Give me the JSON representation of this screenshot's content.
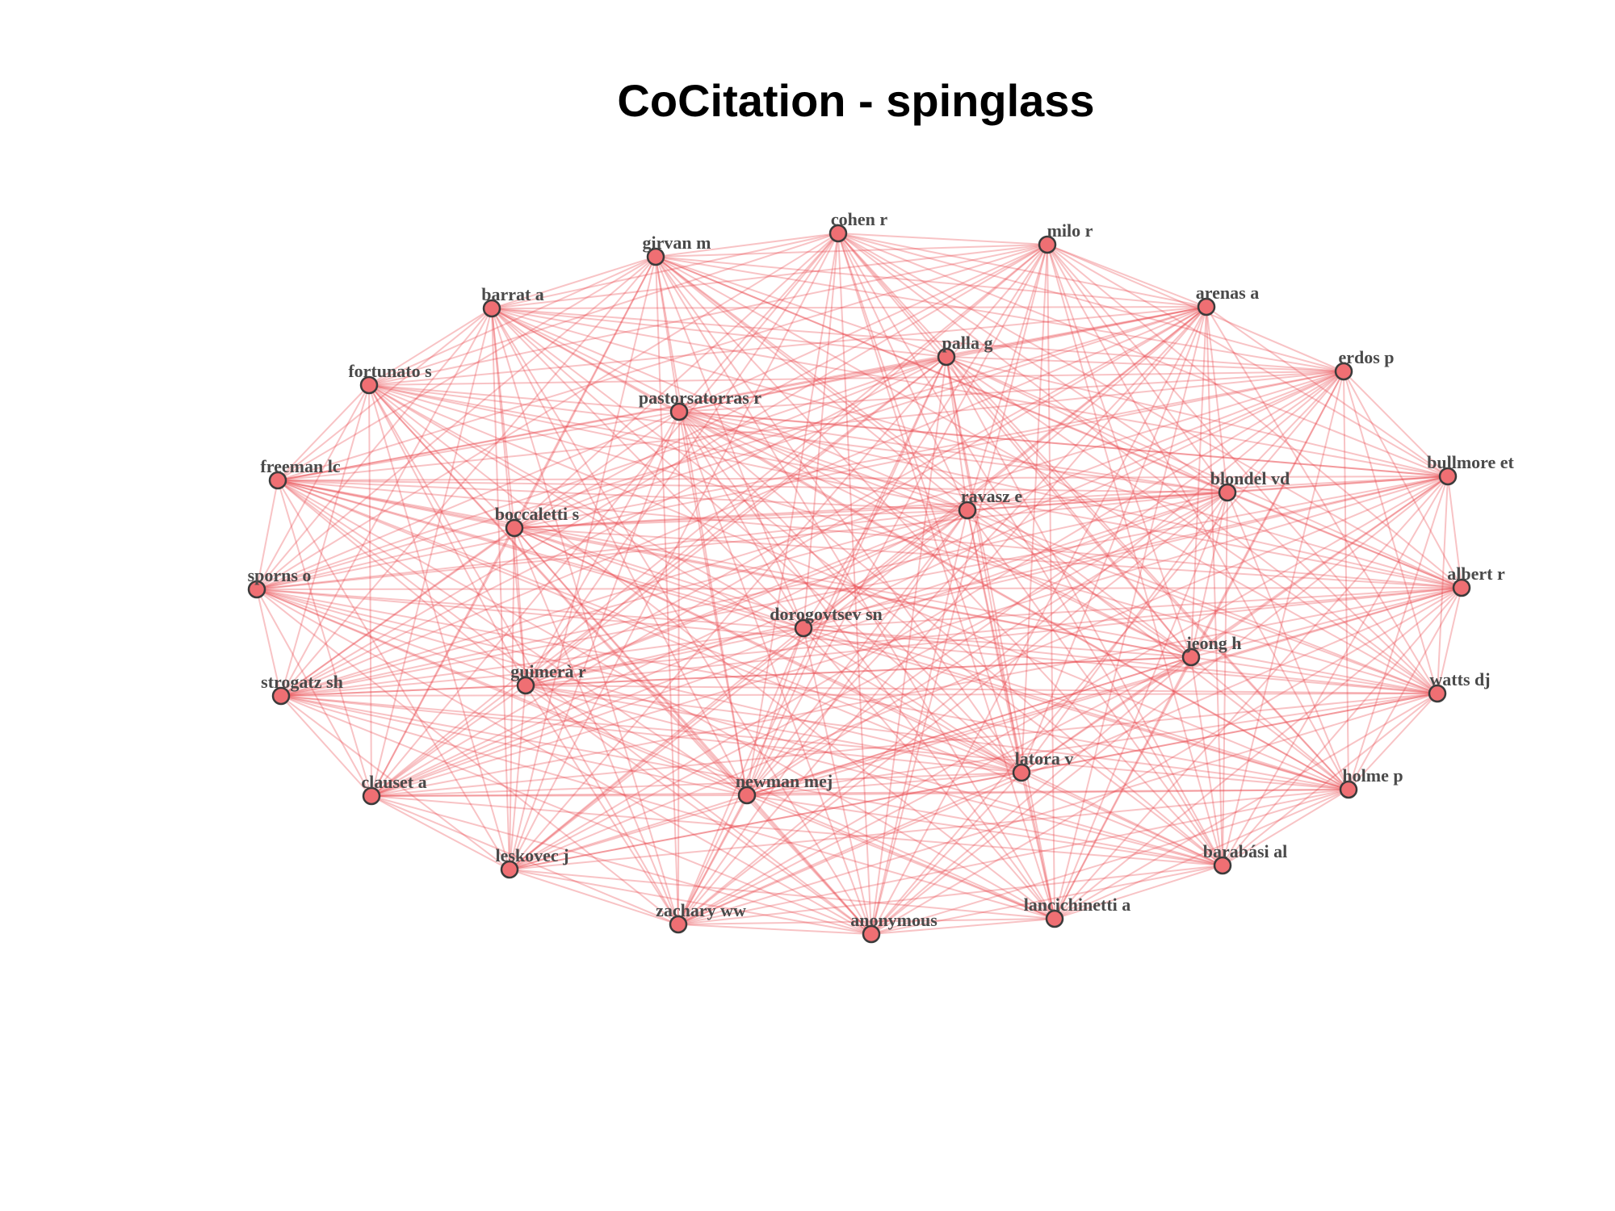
{
  "title": "CoCitation  - spinglass",
  "colors": {
    "edge": "#e8434b",
    "node_fill": "#ef6f73",
    "node_stroke": "#3b3b3b",
    "label": "#4a4a4a"
  },
  "nodes": [
    "cohen r",
    "milo r",
    "girvan m",
    "arenas a",
    "barrat a",
    "palla g",
    "erdos p",
    "fortunato s",
    "pastorsatorras r",
    "freeman lc",
    "bullmore et",
    "blondel vd",
    "ravasz e",
    "boccaletti s",
    "sporns o",
    "albert r",
    "dorogovtsev sn",
    "jeong h",
    "strogatz sh",
    "guimerà r",
    "watts dj",
    "latora v",
    "clauset a",
    "newman mej",
    "holme p",
    "leskovec j",
    "barabási al",
    "zachary ww",
    "anonymous",
    "lancichinetti a"
  ]
}
